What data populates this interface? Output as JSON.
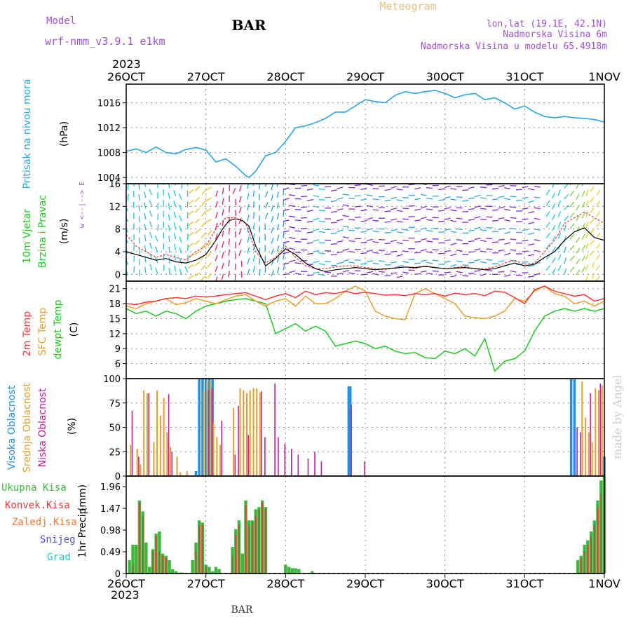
{
  "header": {
    "model_label": "Model",
    "model_name": "wrf-nmm_v3.9.1 e1km",
    "station": "BAR",
    "title": "Meteogram",
    "coords": "lon,lat (19.1E, 42.1N)",
    "elevation": "Nadmorska Visina 6m",
    "model_elevation": "Nadmorska Visina u modelu 65.4918m",
    "watermark": "made by Angel",
    "footer_station": "BAR"
  },
  "time_axis": {
    "year": "2023",
    "ticks": [
      "26OCT",
      "27OCT",
      "28OCT",
      "29OCT",
      "30OCT",
      "31OCT",
      "1NOV"
    ],
    "start_hour": 0,
    "end_hour": 144
  },
  "colors": {
    "pressure": "#2aa5e0",
    "temp2m": "#f03a3a",
    "sfctemp": "#e8a030",
    "dewpt": "#22c822",
    "high_cloud": "#2090e0",
    "mid_cloud": "#e0a030",
    "low_cloud": "#c020a0",
    "total_precip": "#3cb83c",
    "conv_precip": "#e03a3a",
    "snow_label": "#5050e0",
    "grad_label": "#20c8c0",
    "model_text": "#a050d0",
    "meteogram_title": "#e8c080"
  },
  "chart_data": [
    {
      "type": "line",
      "panel": "pressure",
      "ylabel_left": "Pritisak na nivou mora",
      "unit": "(hPa)",
      "yticks": [
        1004,
        1008,
        1012,
        1016
      ],
      "ylim": [
        1003.0,
        1019.0
      ],
      "series": [
        {
          "key": "pressure",
          "x": [
            0,
            3,
            6,
            9,
            12,
            15,
            18,
            21,
            24,
            27,
            30,
            33,
            36,
            37,
            39,
            42,
            45,
            48,
            51,
            54,
            57,
            60,
            63,
            66,
            69,
            72,
            75,
            78,
            81,
            84,
            87,
            90,
            93,
            96,
            99,
            102,
            105,
            108,
            111,
            114,
            117,
            120,
            123,
            126,
            129,
            132,
            135,
            138,
            141,
            144
          ],
          "y": [
            1008.2,
            1008.6,
            1008.0,
            1008.9,
            1008.0,
            1007.8,
            1008.5,
            1008.8,
            1008.4,
            1006.5,
            1007.0,
            1005.8,
            1004.3,
            1004.0,
            1005.0,
            1007.5,
            1008.0,
            1009.8,
            1012.0,
            1012.3,
            1012.8,
            1013.5,
            1014.5,
            1014.5,
            1015.5,
            1016.5,
            1016.2,
            1016.0,
            1017.2,
            1017.8,
            1017.5,
            1017.8,
            1018.0,
            1017.5,
            1016.8,
            1017.3,
            1017.5,
            1016.5,
            1016.8,
            1016.0,
            1015.0,
            1015.5,
            1014.5,
            1013.8,
            1013.6,
            1013.8,
            1013.6,
            1013.5,
            1013.3,
            1012.9
          ]
        }
      ]
    },
    {
      "type": "line",
      "panel": "wind",
      "ylabel_left": "10m Vjetar",
      "ylabel_left2": "Brzina i Pravac",
      "unit": "(m/s)",
      "direction_legend": "w <--|--> E",
      "yticks": [
        0,
        4,
        8,
        12,
        16
      ],
      "ylim": [
        -1.2,
        16.0
      ],
      "series": [
        {
          "key": "wind_speed",
          "x": [
            0,
            3,
            6,
            9,
            12,
            15,
            18,
            21,
            24,
            27,
            29,
            31,
            33,
            35,
            37,
            39,
            42,
            45,
            48,
            51,
            54,
            57,
            60,
            63,
            66,
            69,
            72,
            75,
            78,
            81,
            84,
            87,
            90,
            93,
            96,
            99,
            102,
            105,
            108,
            111,
            114,
            117,
            120,
            123,
            126,
            129,
            132,
            135,
            138,
            141,
            144
          ],
          "y": [
            4.0,
            3.5,
            3.0,
            2.5,
            2.8,
            2.2,
            2.0,
            2.5,
            3.5,
            6.0,
            8.0,
            9.5,
            9.8,
            9.5,
            8.5,
            5.0,
            1.5,
            2.8,
            4.5,
            3.5,
            2.0,
            1.0,
            0.5,
            0.8,
            1.0,
            1.2,
            1.0,
            0.8,
            1.0,
            1.1,
            1.3,
            1.2,
            1.4,
            1.2,
            1.0,
            1.1,
            1.2,
            1.0,
            0.8,
            1.0,
            1.5,
            2.0,
            1.5,
            1.8,
            3.0,
            4.0,
            6.0,
            7.5,
            8.2,
            6.5,
            6.0
          ]
        },
        {
          "key": "wind_gust",
          "x": [
            0,
            3,
            6,
            9,
            12,
            15,
            18,
            21,
            24,
            27,
            30,
            33,
            36,
            39,
            42,
            45,
            48,
            51,
            54,
            57,
            60,
            63,
            66,
            69,
            72,
            75,
            78,
            81,
            84,
            87,
            90,
            93,
            96,
            99,
            102,
            105,
            108,
            111,
            114,
            117,
            120,
            123,
            126,
            129,
            132,
            135,
            138,
            141,
            144
          ],
          "y": [
            7.0,
            5.0,
            4.0,
            3.0,
            3.5,
            3.0,
            2.5,
            4.0,
            5.0,
            8.0,
            10.0,
            10.0,
            9.0,
            4.0,
            2.0,
            3.0,
            5.0,
            3.0,
            1.5,
            1.0,
            1.0,
            1.3,
            1.5,
            1.5,
            1.2,
            1.0,
            0.8,
            1.2,
            1.3,
            1.0,
            1.5,
            1.2,
            1.0,
            1.2,
            1.4,
            1.0,
            1.0,
            1.3,
            2.0,
            2.5,
            1.8,
            2.0,
            4.0,
            6.0,
            9.0,
            10.0,
            11.0,
            10.0,
            9.0
          ]
        }
      ]
    },
    {
      "type": "line",
      "panel": "temperature",
      "ylabel_left": "2m Temp",
      "ylabel_left2": "SFC Temp",
      "ylabel_left3": "dewpt Temp",
      "unit": "(C)",
      "yticks": [
        6,
        9,
        12,
        15,
        18,
        21
      ],
      "ylim": [
        3.0,
        22.5
      ],
      "series": [
        {
          "key": "temp2m",
          "x": [
            0,
            3,
            6,
            9,
            12,
            15,
            18,
            21,
            24,
            27,
            30,
            33,
            36,
            39,
            42,
            45,
            48,
            51,
            54,
            57,
            60,
            63,
            66,
            69,
            72,
            75,
            78,
            81,
            84,
            87,
            90,
            93,
            96,
            99,
            102,
            105,
            108,
            111,
            114,
            117,
            120,
            123,
            126,
            129,
            132,
            135,
            138,
            141,
            144
          ],
          "y": [
            18.0,
            17.8,
            18.3,
            18.5,
            19.0,
            19.2,
            19.0,
            19.5,
            19.3,
            19.5,
            19.8,
            20.0,
            20.2,
            19.5,
            18.8,
            19.5,
            20.0,
            19.2,
            20.5,
            19.8,
            20.2,
            20.0,
            20.5,
            20.0,
            20.3,
            20.0,
            19.7,
            19.8,
            19.6,
            20.0,
            19.8,
            20.0,
            19.5,
            20.1,
            19.8,
            20.0,
            19.6,
            20.5,
            20.3,
            19.2,
            18.0,
            20.8,
            21.5,
            20.5,
            20.0,
            19.5,
            19.8,
            18.5,
            19.0
          ]
        },
        {
          "key": "sfctemp",
          "x": [
            0,
            3,
            6,
            9,
            12,
            15,
            18,
            21,
            24,
            27,
            30,
            33,
            36,
            39,
            42,
            45,
            48,
            51,
            54,
            57,
            60,
            63,
            66,
            69,
            72,
            75,
            78,
            81,
            84,
            87,
            90,
            93,
            96,
            99,
            102,
            105,
            108,
            111,
            114,
            117,
            120,
            123,
            126,
            129,
            132,
            135,
            138,
            141,
            144
          ],
          "y": [
            17.5,
            17.0,
            18.0,
            18.5,
            19.0,
            17.8,
            18.2,
            19.0,
            18.5,
            18.0,
            18.8,
            19.5,
            19.8,
            18.5,
            17.5,
            18.5,
            19.0,
            17.5,
            19.5,
            18.0,
            18.0,
            19.0,
            20.5,
            21.5,
            20.5,
            16.5,
            15.5,
            15.0,
            14.8,
            20.0,
            21.0,
            20.0,
            19.0,
            18.0,
            15.5,
            15.2,
            15.0,
            15.5,
            16.5,
            19.0,
            18.5,
            20.5,
            21.5,
            20.0,
            19.5,
            18.0,
            18.5,
            17.5,
            18.5
          ]
        },
        {
          "key": "dewpt",
          "x": [
            0,
            3,
            6,
            9,
            12,
            15,
            18,
            21,
            24,
            27,
            30,
            33,
            36,
            39,
            42,
            45,
            48,
            51,
            54,
            57,
            60,
            63,
            66,
            69,
            72,
            75,
            78,
            81,
            84,
            87,
            90,
            93,
            96,
            99,
            102,
            105,
            108,
            111,
            114,
            117,
            120,
            123,
            126,
            129,
            132,
            135,
            138,
            141,
            144
          ],
          "y": [
            17.0,
            16.0,
            16.5,
            15.5,
            16.5,
            16.0,
            15.0,
            16.5,
            17.5,
            18.0,
            18.5,
            18.8,
            19.0,
            18.5,
            18.0,
            12.0,
            13.0,
            14.0,
            12.5,
            13.5,
            12.5,
            9.5,
            10.0,
            10.5,
            10.0,
            9.0,
            9.5,
            8.5,
            8.0,
            8.2,
            7.2,
            7.0,
            8.5,
            8.0,
            9.0,
            7.5,
            11.0,
            4.5,
            6.5,
            7.0,
            8.5,
            12.5,
            15.5,
            16.5,
            17.0,
            16.5,
            17.0,
            16.5,
            17.0
          ]
        }
      ]
    },
    {
      "type": "bar",
      "panel": "cloud",
      "ylabel_left": "Visoka Oblacnost",
      "ylabel_left2": "Srednja Oblacnost",
      "ylabel_left3": "Niska Oblacnost",
      "unit": "(%)",
      "yticks": [
        0,
        25,
        50,
        75,
        100
      ],
      "ylim": [
        0,
        100
      ],
      "series": [
        {
          "key": "high_cloud",
          "x": [
            21,
            22,
            23,
            24,
            25,
            26,
            67,
            67.5,
            134,
            135,
            144
          ],
          "y": [
            5,
            100,
            100,
            100,
            100,
            100,
            92,
            92,
            100,
            100,
            20
          ]
        },
        {
          "key": "mid_cloud",
          "x": [
            1,
            3,
            4,
            5,
            6,
            8,
            9,
            10,
            11,
            12,
            13,
            15,
            16,
            18,
            23,
            24,
            25,
            26,
            27,
            28,
            32,
            34,
            35,
            36,
            37,
            38,
            39,
            40,
            137,
            138,
            139,
            140,
            141,
            142,
            143
          ],
          "y": [
            32,
            28,
            12,
            88,
            85,
            35,
            88,
            62,
            80,
            45,
            30,
            20,
            4,
            5,
            88,
            97,
            98,
            55,
            40,
            32,
            70,
            90,
            88,
            85,
            88,
            90,
            90,
            86,
            97,
            60,
            45,
            35,
            90,
            88,
            93
          ]
        },
        {
          "key": "low_cloud",
          "x": [
            2,
            4,
            7,
            13,
            14,
            25,
            26,
            29,
            33,
            34,
            37,
            41,
            42,
            45,
            46,
            48,
            50,
            52,
            55,
            57,
            59,
            68,
            72,
            136,
            137,
            140,
            143
          ],
          "y": [
            67,
            20,
            85,
            84,
            25,
            88,
            90,
            57,
            22,
            72,
            42,
            87,
            40,
            95,
            40,
            33,
            28,
            22,
            18,
            25,
            15,
            73,
            15,
            50,
            45,
            85,
            95
          ]
        }
      ]
    },
    {
      "type": "bar",
      "panel": "precip",
      "legend": [
        "Ukupna Kisa",
        "Konvek.Kisa",
        "Zaledj.Kisa",
        "Snijeg",
        "Grad"
      ],
      "ylabel_left": "1hr Precip",
      "unit": "(mm)",
      "yticks": [
        0,
        0.49,
        0.98,
        1.47,
        1.96
      ],
      "ylim": [
        0,
        2.2
      ],
      "series": [
        {
          "key": "total_precip",
          "x": [
            1,
            2,
            3,
            4,
            5,
            6,
            7,
            8,
            9,
            10,
            11,
            12,
            13,
            14,
            15,
            16,
            17,
            20,
            21,
            22,
            23,
            24,
            25,
            26,
            27,
            28,
            32,
            33,
            34,
            35,
            36,
            37,
            38,
            39,
            40,
            41,
            42,
            48,
            49,
            50,
            51,
            52,
            56,
            136,
            137,
            138,
            139,
            140,
            141,
            142,
            143,
            144
          ],
          "y": [
            0.3,
            0.65,
            0.65,
            1.65,
            1.4,
            0.7,
            0.15,
            0.55,
            0.9,
            0.95,
            0.45,
            0.4,
            0.3,
            0.1,
            0.05,
            0.02,
            0.02,
            0.3,
            0.7,
            1.2,
            1.15,
            0.2,
            0.15,
            0.05,
            0.15,
            0.1,
            0.6,
            1.0,
            1.2,
            0.45,
            1.65,
            1.2,
            1.2,
            1.45,
            1.5,
            1.65,
            1.5,
            0.2,
            0.15,
            0.12,
            0.12,
            0.1,
            0.05,
            0.3,
            0.4,
            0.65,
            0.75,
            0.95,
            1.2,
            1.65,
            2.1,
            2.2
          ]
        },
        {
          "key": "conv_precip",
          "x": [
            2,
            4,
            5,
            8,
            9,
            10,
            11,
            12,
            21,
            22,
            23,
            24,
            32,
            33,
            34,
            36,
            37,
            38,
            39,
            40,
            41,
            42,
            137,
            138,
            139,
            140,
            141,
            142,
            143,
            144
          ],
          "y": [
            0.2,
            1.6,
            1.3,
            0.5,
            0.85,
            0.5,
            0.4,
            0.35,
            0.5,
            1.1,
            1.1,
            0.15,
            0.4,
            0.85,
            1.1,
            1.55,
            1.1,
            1.15,
            1.3,
            1.45,
            1.6,
            1.45,
            0.35,
            0.5,
            0.65,
            0.85,
            1.1,
            1.5,
            1.8,
            1.85
          ]
        }
      ]
    }
  ]
}
